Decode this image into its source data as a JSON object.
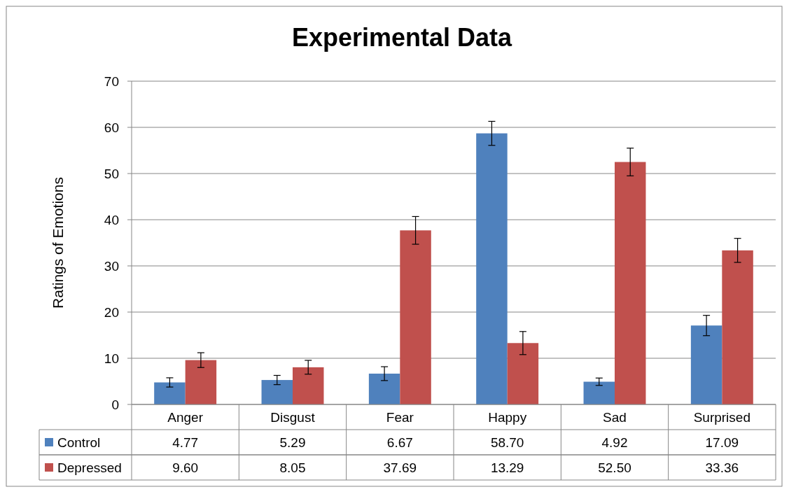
{
  "chart_data": {
    "type": "bar",
    "title": "Experimental Data",
    "ylabel": "Ratings of Emotions",
    "categories": [
      "Anger",
      "Disgust",
      "Fear",
      "Happy",
      "Sad",
      "Surprised"
    ],
    "series": [
      {
        "name": "Control",
        "color": "#4f81bd",
        "values": [
          4.77,
          5.29,
          6.67,
          58.7,
          4.92,
          17.09
        ],
        "value_labels": [
          "4.77",
          "5.29",
          "6.67",
          "58.70",
          "4.92",
          "17.09"
        ],
        "errors": [
          1.0,
          1.0,
          1.5,
          2.6,
          0.8,
          2.2
        ]
      },
      {
        "name": "Depressed",
        "color": "#c0504d",
        "values": [
          9.6,
          8.05,
          37.69,
          13.29,
          52.5,
          33.36
        ],
        "value_labels": [
          "9.60",
          "8.05",
          "37.69",
          "13.29",
          "52.50",
          "33.36"
        ],
        "errors": [
          1.6,
          1.5,
          3.0,
          2.5,
          3.0,
          2.6
        ]
      }
    ],
    "ylim": [
      0,
      70
    ],
    "yticks": [
      0,
      10,
      20,
      30,
      40,
      50,
      60,
      70
    ],
    "grid": "y",
    "legend": "bottom"
  }
}
